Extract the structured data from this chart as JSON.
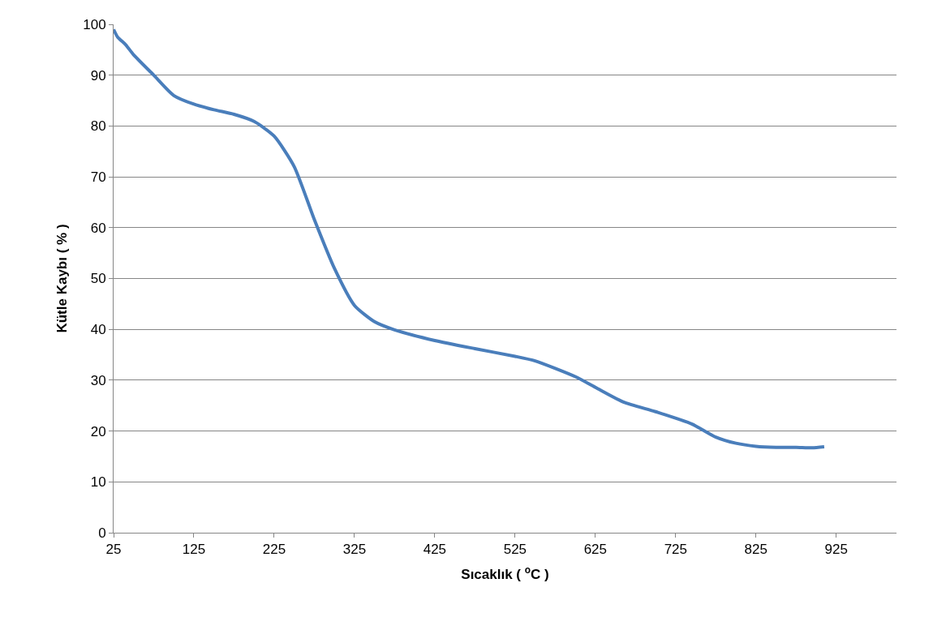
{
  "chart_data": {
    "type": "line",
    "xlabel": "Sıcaklık ( $^{o}$C )",
    "ylabel": "Kütle Kaybı ( % )",
    "series": [
      {
        "color": "#4a7ebb",
        "x": [
          25,
          30,
          40,
          50,
          75,
          100,
          125,
          150,
          175,
          200,
          225,
          250,
          275,
          300,
          325,
          350,
          375,
          425,
          475,
          525,
          550,
          600,
          625,
          660,
          700,
          745,
          775,
          800,
          825,
          850,
          875,
          895,
          910
        ],
        "values": [
          99,
          97.5,
          96,
          94,
          90,
          86,
          84.3,
          83.2,
          82.3,
          80.9,
          78,
          72,
          61.6,
          52,
          44.7,
          41.5,
          39.9,
          37.8,
          36.2,
          34.7,
          33.8,
          30.7,
          28.6,
          25.7,
          23.8,
          21.4,
          18.8,
          17.6,
          17.0,
          16.8,
          16.8,
          16.7,
          16.9
        ]
      }
    ],
    "xlim": [
      25,
      1000
    ],
    "xticks": [
      25,
      125,
      225,
      325,
      425,
      525,
      625,
      725,
      825,
      925
    ],
    "ylim": [
      0,
      100
    ],
    "yticks": [
      0,
      10,
      20,
      30,
      40,
      50,
      60,
      70,
      80,
      90,
      100
    ],
    "grid": "y",
    "legend": false,
    "line_style": "solid",
    "marker": "none"
  }
}
